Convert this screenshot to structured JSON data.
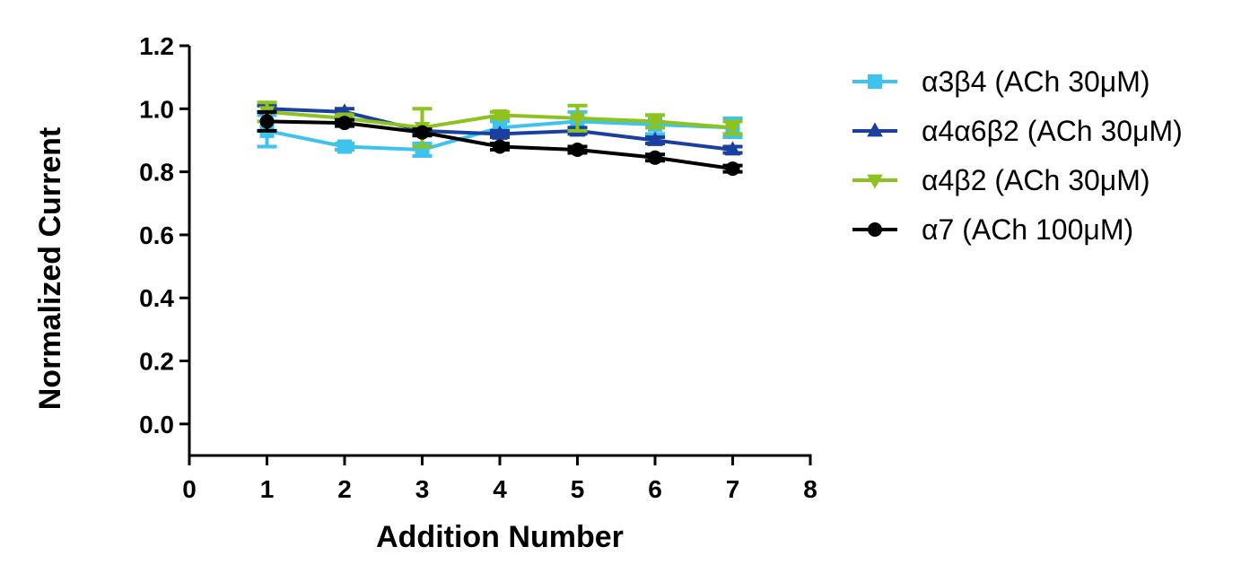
{
  "chart_data": {
    "type": "line",
    "title": "",
    "xlabel": "Addition Number",
    "ylabel": "Normalized Current",
    "xlim": [
      0,
      8
    ],
    "ylim": [
      -0.1,
      1.2
    ],
    "xticks": [
      "0",
      "1",
      "2",
      "3",
      "4",
      "5",
      "6",
      "7",
      "8"
    ],
    "yticks": [
      "0.0",
      "0.2",
      "0.4",
      "0.6",
      "0.8",
      "1.0",
      "1.2"
    ],
    "grid": false,
    "legend_position": "right",
    "x": [
      1,
      2,
      3,
      4,
      5,
      6,
      7
    ],
    "series": [
      {
        "name": "α3β4 (ACh 30μM)",
        "color": "#3ec3ee",
        "marker": "square",
        "values": [
          0.93,
          0.88,
          0.87,
          0.94,
          0.96,
          0.95,
          0.94
        ],
        "errors": [
          0.05,
          0.01,
          0.02,
          0.02,
          0.03,
          0.03,
          0.03
        ]
      },
      {
        "name": "α4α6β2 (ACh 30μM)",
        "color": "#1a3f9e",
        "marker": "triangle-up",
        "values": [
          1.0,
          0.99,
          0.93,
          0.92,
          0.93,
          0.9,
          0.87
        ],
        "errors": [
          0.01,
          0.01,
          0.01,
          0.01,
          0.01,
          0.01,
          0.01
        ]
      },
      {
        "name": "α4β2 (ACh 30μM)",
        "color": "#8dc21f",
        "marker": "triangle-down",
        "values": [
          0.99,
          0.97,
          0.94,
          0.98,
          0.97,
          0.96,
          0.94
        ],
        "errors": [
          0.03,
          0.01,
          0.06,
          0.01,
          0.04,
          0.02,
          0.02
        ]
      },
      {
        "name": "α7 (ACh 100μM)",
        "color": "#000000",
        "marker": "circle",
        "values": [
          0.96,
          0.955,
          0.925,
          0.88,
          0.87,
          0.845,
          0.81
        ],
        "errors": [
          0.03,
          0.01,
          0.01,
          0.01,
          0.01,
          0.01,
          0.01
        ]
      }
    ]
  }
}
